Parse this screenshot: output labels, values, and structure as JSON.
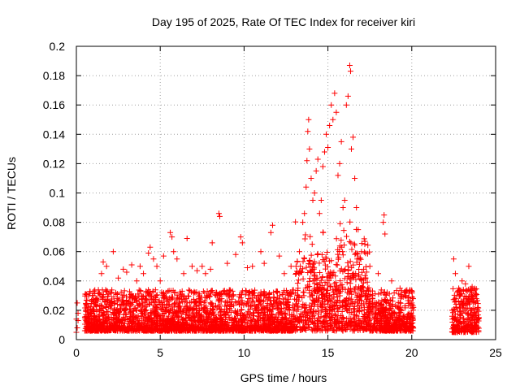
{
  "chart_data": {
    "type": "scatter",
    "title": "Day 195 of 2025, Rate Of TEC Index for receiver kiri",
    "xlabel": "GPS time / hours",
    "ylabel": "ROTI / TECUs",
    "xlim": [
      0,
      25
    ],
    "ylim": [
      0,
      0.2
    ],
    "xticks": [
      0,
      5,
      10,
      15,
      20,
      25
    ],
    "yticks": [
      0,
      0.02,
      0.04,
      0.06,
      0.08,
      0.1,
      0.12,
      0.14,
      0.16,
      0.18,
      0.2
    ],
    "xtick_labels": [
      "0",
      "5",
      "10",
      "15",
      "20",
      "25"
    ],
    "ytick_labels": [
      "0",
      "0.02",
      "0.04",
      "0.06",
      "0.08",
      "0.1",
      "0.12",
      "0.14",
      "0.16",
      "0.18",
      "0.2"
    ],
    "grid": true,
    "marker": "plus",
    "color": "#ff0000",
    "data_gap_hours": [
      20.1,
      22.4
    ],
    "series": [
      {
        "points": [
          [
            0.0,
            0.014
          ],
          [
            0.05,
            0.025
          ],
          [
            0.1,
            0.018
          ],
          [
            0.05,
            0.008
          ],
          [
            0.1,
            0.013
          ],
          [
            0.0,
            0.005
          ],
          [
            0.6,
            0.012
          ],
          [
            0.7,
            0.022
          ],
          [
            0.9,
            0.018
          ],
          [
            1.0,
            0.03
          ],
          [
            1.2,
            0.027
          ],
          [
            1.5,
            0.045
          ],
          [
            1.6,
            0.053
          ],
          [
            1.8,
            0.05
          ],
          [
            2.2,
            0.06
          ],
          [
            2.5,
            0.042
          ],
          [
            2.8,
            0.048
          ],
          [
            3.0,
            0.046
          ],
          [
            3.3,
            0.051
          ],
          [
            3.6,
            0.04
          ],
          [
            3.8,
            0.05
          ],
          [
            4.0,
            0.045
          ],
          [
            4.3,
            0.059
          ],
          [
            4.4,
            0.063
          ],
          [
            4.6,
            0.055
          ],
          [
            4.8,
            0.05
          ],
          [
            5.0,
            0.04
          ],
          [
            5.2,
            0.057
          ],
          [
            5.6,
            0.073
          ],
          [
            5.7,
            0.07
          ],
          [
            5.8,
            0.06
          ],
          [
            6.0,
            0.055
          ],
          [
            6.4,
            0.045
          ],
          [
            6.6,
            0.069
          ],
          [
            6.9,
            0.05
          ],
          [
            7.2,
            0.047
          ],
          [
            7.5,
            0.05
          ],
          [
            7.7,
            0.045
          ],
          [
            8.0,
            0.048
          ],
          [
            8.1,
            0.066
          ],
          [
            8.5,
            0.086
          ],
          [
            8.55,
            0.084
          ],
          [
            9.0,
            0.052
          ],
          [
            9.5,
            0.058
          ],
          [
            9.8,
            0.07
          ],
          [
            9.9,
            0.066
          ],
          [
            10.2,
            0.049
          ],
          [
            10.5,
            0.05
          ],
          [
            11.0,
            0.06
          ],
          [
            11.2,
            0.052
          ],
          [
            11.6,
            0.073
          ],
          [
            11.7,
            0.078
          ],
          [
            12.1,
            0.057
          ],
          [
            12.4,
            0.045
          ],
          [
            12.8,
            0.05
          ],
          [
            13.1,
            0.05
          ],
          [
            13.3,
            0.06
          ],
          [
            13.5,
            0.08
          ],
          [
            13.6,
            0.086
          ],
          [
            13.7,
            0.104
          ],
          [
            13.75,
            0.122
          ],
          [
            13.8,
            0.142
          ],
          [
            13.85,
            0.15
          ],
          [
            13.9,
            0.13
          ],
          [
            14.0,
            0.11
          ],
          [
            14.1,
            0.095
          ],
          [
            14.2,
            0.1
          ],
          [
            14.3,
            0.115
          ],
          [
            14.4,
            0.123
          ],
          [
            14.5,
            0.086
          ],
          [
            14.6,
            0.095
          ],
          [
            14.7,
            0.118
          ],
          [
            14.8,
            0.128
          ],
          [
            14.9,
            0.14
          ],
          [
            15.0,
            0.131
          ],
          [
            15.1,
            0.146
          ],
          [
            15.2,
            0.16
          ],
          [
            15.3,
            0.15
          ],
          [
            15.4,
            0.168
          ],
          [
            15.5,
            0.155
          ],
          [
            15.6,
            0.112
          ],
          [
            15.7,
            0.12
          ],
          [
            15.8,
            0.135
          ],
          [
            15.9,
            0.09
          ],
          [
            16.0,
            0.095
          ],
          [
            16.1,
            0.16
          ],
          [
            16.2,
            0.166
          ],
          [
            16.3,
            0.187
          ],
          [
            16.35,
            0.183
          ],
          [
            16.4,
            0.13
          ],
          [
            16.5,
            0.138
          ],
          [
            16.6,
            0.11
          ],
          [
            16.7,
            0.09
          ],
          [
            16.8,
            0.075
          ],
          [
            17.0,
            0.06
          ],
          [
            17.2,
            0.065
          ],
          [
            17.5,
            0.05
          ],
          [
            18.0,
            0.045
          ],
          [
            18.3,
            0.08
          ],
          [
            18.35,
            0.085
          ],
          [
            18.4,
            0.072
          ],
          [
            18.8,
            0.04
          ],
          [
            19.3,
            0.035
          ],
          [
            19.6,
            0.03
          ],
          [
            20.0,
            0.025
          ],
          [
            20.05,
            0.015
          ],
          [
            22.4,
            0.02
          ],
          [
            22.5,
            0.055
          ],
          [
            22.6,
            0.045
          ],
          [
            22.8,
            0.035
          ],
          [
            23.0,
            0.04
          ],
          [
            23.2,
            0.038
          ],
          [
            23.4,
            0.05
          ],
          [
            23.6,
            0.036
          ],
          [
            23.8,
            0.03
          ],
          [
            24.0,
            0.015
          ]
        ]
      }
    ]
  }
}
